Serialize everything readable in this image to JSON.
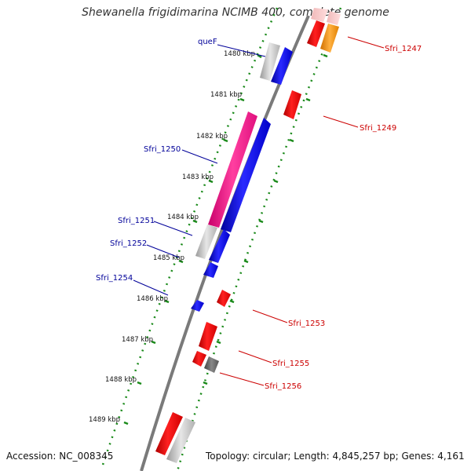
{
  "header": {
    "title": "Shewanella frigidimarina NCIMB 400, complete genome"
  },
  "footer": {
    "accession": "Accession: NC_008345",
    "topology": "Topology: circular; Length: 4,845,257 bp; Genes: 4,161"
  },
  "ticks": [
    "1480 kbp",
    "1481 kbp",
    "1482 kbp",
    "1483 kbp",
    "1484 kbp",
    "1485 kbp",
    "1486 kbp",
    "1487 kbp",
    "1488 kbp",
    "1489 kbp"
  ],
  "labels": {
    "queF": "queF",
    "Sfri_1247": "Sfri_1247",
    "Sfri_1249": "Sfri_1249",
    "Sfri_1250": "Sfri_1250",
    "Sfri_1251": "Sfri_1251",
    "Sfri_1252": "Sfri_1252",
    "Sfri_1253": "Sfri_1253",
    "Sfri_1254": "Sfri_1254",
    "Sfri_1255": "Sfri_1255",
    "Sfri_1256": "Sfri_1256"
  },
  "colors": {
    "forward_cds": "#0000ee",
    "reverse_cds": "#ee0000",
    "rna": "#ff1f8f",
    "pseudo": "#c8c8c8",
    "orange_feature": "#ff9900",
    "dark_feature": "#666666",
    "forward_label": "#000099",
    "reverse_label": "#cc0000",
    "backbone": "#808080",
    "tick": "#1a8a1a"
  }
}
